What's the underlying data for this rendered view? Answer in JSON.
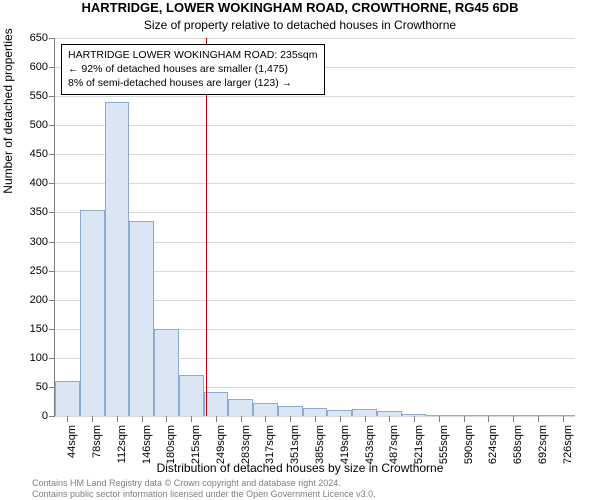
{
  "title": "HARTRIDGE, LOWER WOKINGHAM ROAD, CROWTHORNE, RG45 6DB",
  "subtitle": "Size of property relative to detached houses in Crowthorne",
  "chart": {
    "type": "histogram",
    "y_title": "Number of detached properties",
    "x_title": "Distribution of detached houses by size in Crowthorne",
    "ylim": [
      0,
      650
    ],
    "ytick_step": 50,
    "xticks": [
      "44sqm",
      "78sqm",
      "112sqm",
      "146sqm",
      "180sqm",
      "215sqm",
      "249sqm",
      "283sqm",
      "317sqm",
      "351sqm",
      "385sqm",
      "419sqm",
      "453sqm",
      "487sqm",
      "521sqm",
      "555sqm",
      "590sqm",
      "624sqm",
      "658sqm",
      "692sqm",
      "726sqm"
    ],
    "values": [
      60,
      355,
      540,
      335,
      150,
      70,
      42,
      30,
      22,
      18,
      14,
      10,
      12,
      8,
      4,
      2,
      2,
      0,
      1,
      0,
      1
    ],
    "bar_color": "#dbe6f4",
    "bar_border": "#8faad0",
    "grid_color": "#d9d9d9",
    "axis_color": "#808080",
    "background_color": "#ffffff",
    "bar_width_rel": 1.0,
    "marker": {
      "x_value": 235,
      "x_min": 44,
      "x_range": 726,
      "color": "#c00000"
    }
  },
  "annotation": {
    "line1": "HARTRIDGE LOWER WOKINGHAM ROAD: 235sqm",
    "line2": "← 92% of detached houses are smaller (1,475)",
    "line3": "8% of semi-detached houses are larger (123) →",
    "border_color": "#000000"
  },
  "footer": {
    "line1": "Contains HM Land Registry data © Crown copyright and database right 2024.",
    "line2": "Contains public sector information licensed under the Open Government Licence v3.0."
  }
}
